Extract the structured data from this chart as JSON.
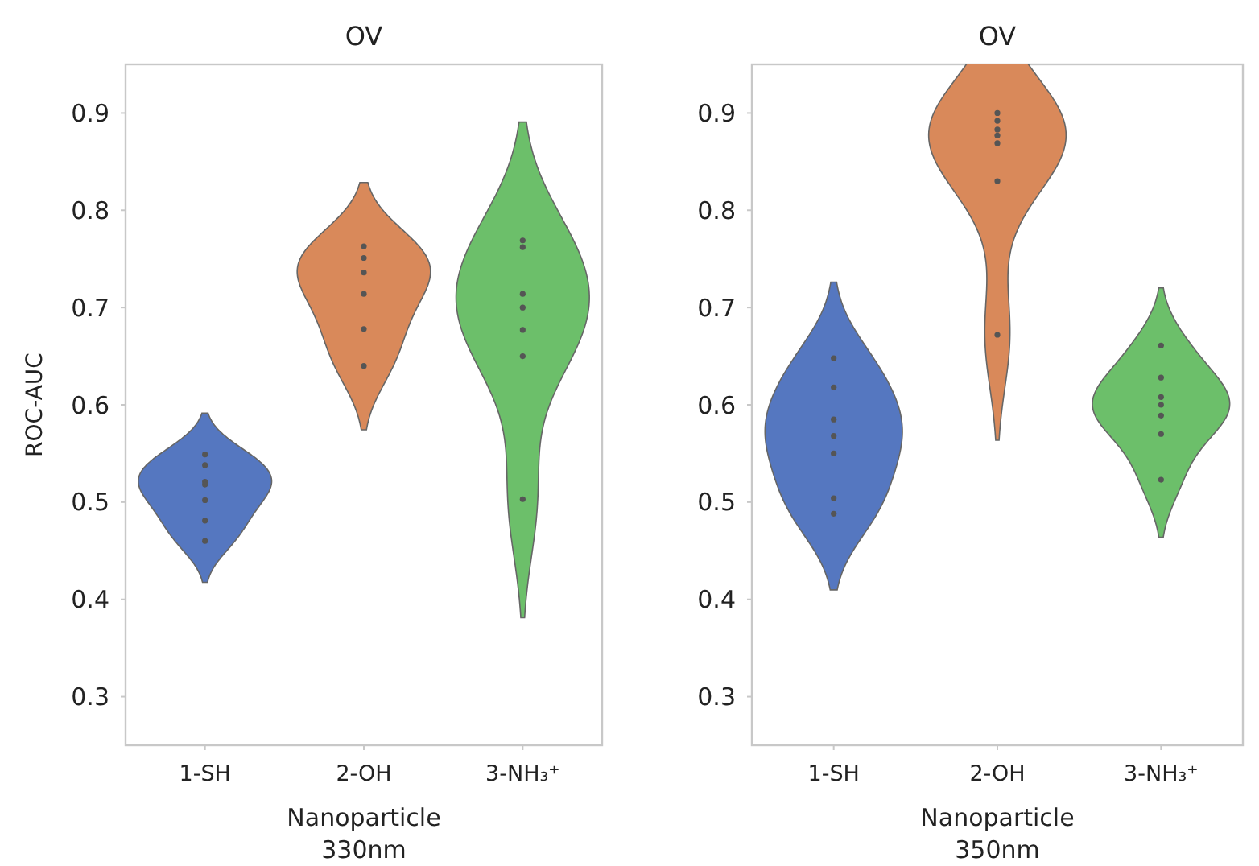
{
  "chart_data": [
    {
      "type": "scatter",
      "title": "OV",
      "xlabel": "Nanoparticle\n330nm",
      "ylabel": "ROC-AUC",
      "categories": [
        "1-SH",
        "2-OH",
        "3-NH₃⁺"
      ],
      "colors": [
        "#5577c0",
        "#d9895a",
        "#6cbf6a"
      ],
      "ylim": [
        0.25,
        0.95
      ],
      "yticks": [
        0.3,
        0.4,
        0.5,
        0.6,
        0.7,
        0.8,
        0.9
      ],
      "marker": "circle",
      "series": [
        {
          "color": "#555555",
          "x": [
            "1-SH",
            "1-SH",
            "1-SH",
            "1-SH",
            "1-SH",
            "1-SH",
            "1-SH"
          ],
          "values": [
            0.549,
            0.538,
            0.521,
            0.518,
            0.502,
            0.481,
            0.46
          ]
        },
        {
          "color": "#555555",
          "x": [
            "2-OH",
            "2-OH",
            "2-OH",
            "2-OH",
            "2-OH",
            "2-OH"
          ],
          "values": [
            0.763,
            0.751,
            0.736,
            0.714,
            0.678,
            0.64
          ]
        },
        {
          "color": "#555555",
          "x": [
            "3-NH₃⁺",
            "3-NH₃⁺",
            "3-NH₃⁺",
            "3-NH₃⁺",
            "3-NH₃⁺",
            "3-NH₃⁺",
            "3-NH₃⁺"
          ],
          "values": [
            0.769,
            0.762,
            0.714,
            0.7,
            0.677,
            0.65,
            0.503
          ]
        }
      ]
    },
    {
      "type": "scatter",
      "title": "OV",
      "xlabel": "Nanoparticle\n350nm",
      "categories": [
        "1-SH",
        "2-OH",
        "3-NH₃⁺"
      ],
      "colors": [
        "#5577c0",
        "#d9895a",
        "#6cbf6a"
      ],
      "ylim": [
        0.25,
        0.95
      ],
      "yticks": [
        0.3,
        0.4,
        0.5,
        0.6,
        0.7,
        0.8,
        0.9
      ],
      "marker": "circle",
      "series": [
        {
          "color": "#555555",
          "x": [
            "1-SH",
            "1-SH",
            "1-SH",
            "1-SH",
            "1-SH",
            "1-SH",
            "1-SH"
          ],
          "values": [
            0.648,
            0.618,
            0.585,
            0.568,
            0.55,
            0.504,
            0.488
          ]
        },
        {
          "color": "#555555",
          "x": [
            "2-OH",
            "2-OH",
            "2-OH",
            "2-OH",
            "2-OH",
            "2-OH",
            "2-OH"
          ],
          "values": [
            0.9,
            0.892,
            0.883,
            0.877,
            0.869,
            0.83,
            0.672
          ]
        },
        {
          "color": "#555555",
          "x": [
            "3-NH₃⁺",
            "3-NH₃⁺",
            "3-NH₃⁺",
            "3-NH₃⁺",
            "3-NH₃⁺",
            "3-NH₃⁺",
            "3-NH₃⁺"
          ],
          "values": [
            0.661,
            0.628,
            0.608,
            0.6,
            0.589,
            0.57,
            0.523
          ]
        }
      ]
    }
  ]
}
